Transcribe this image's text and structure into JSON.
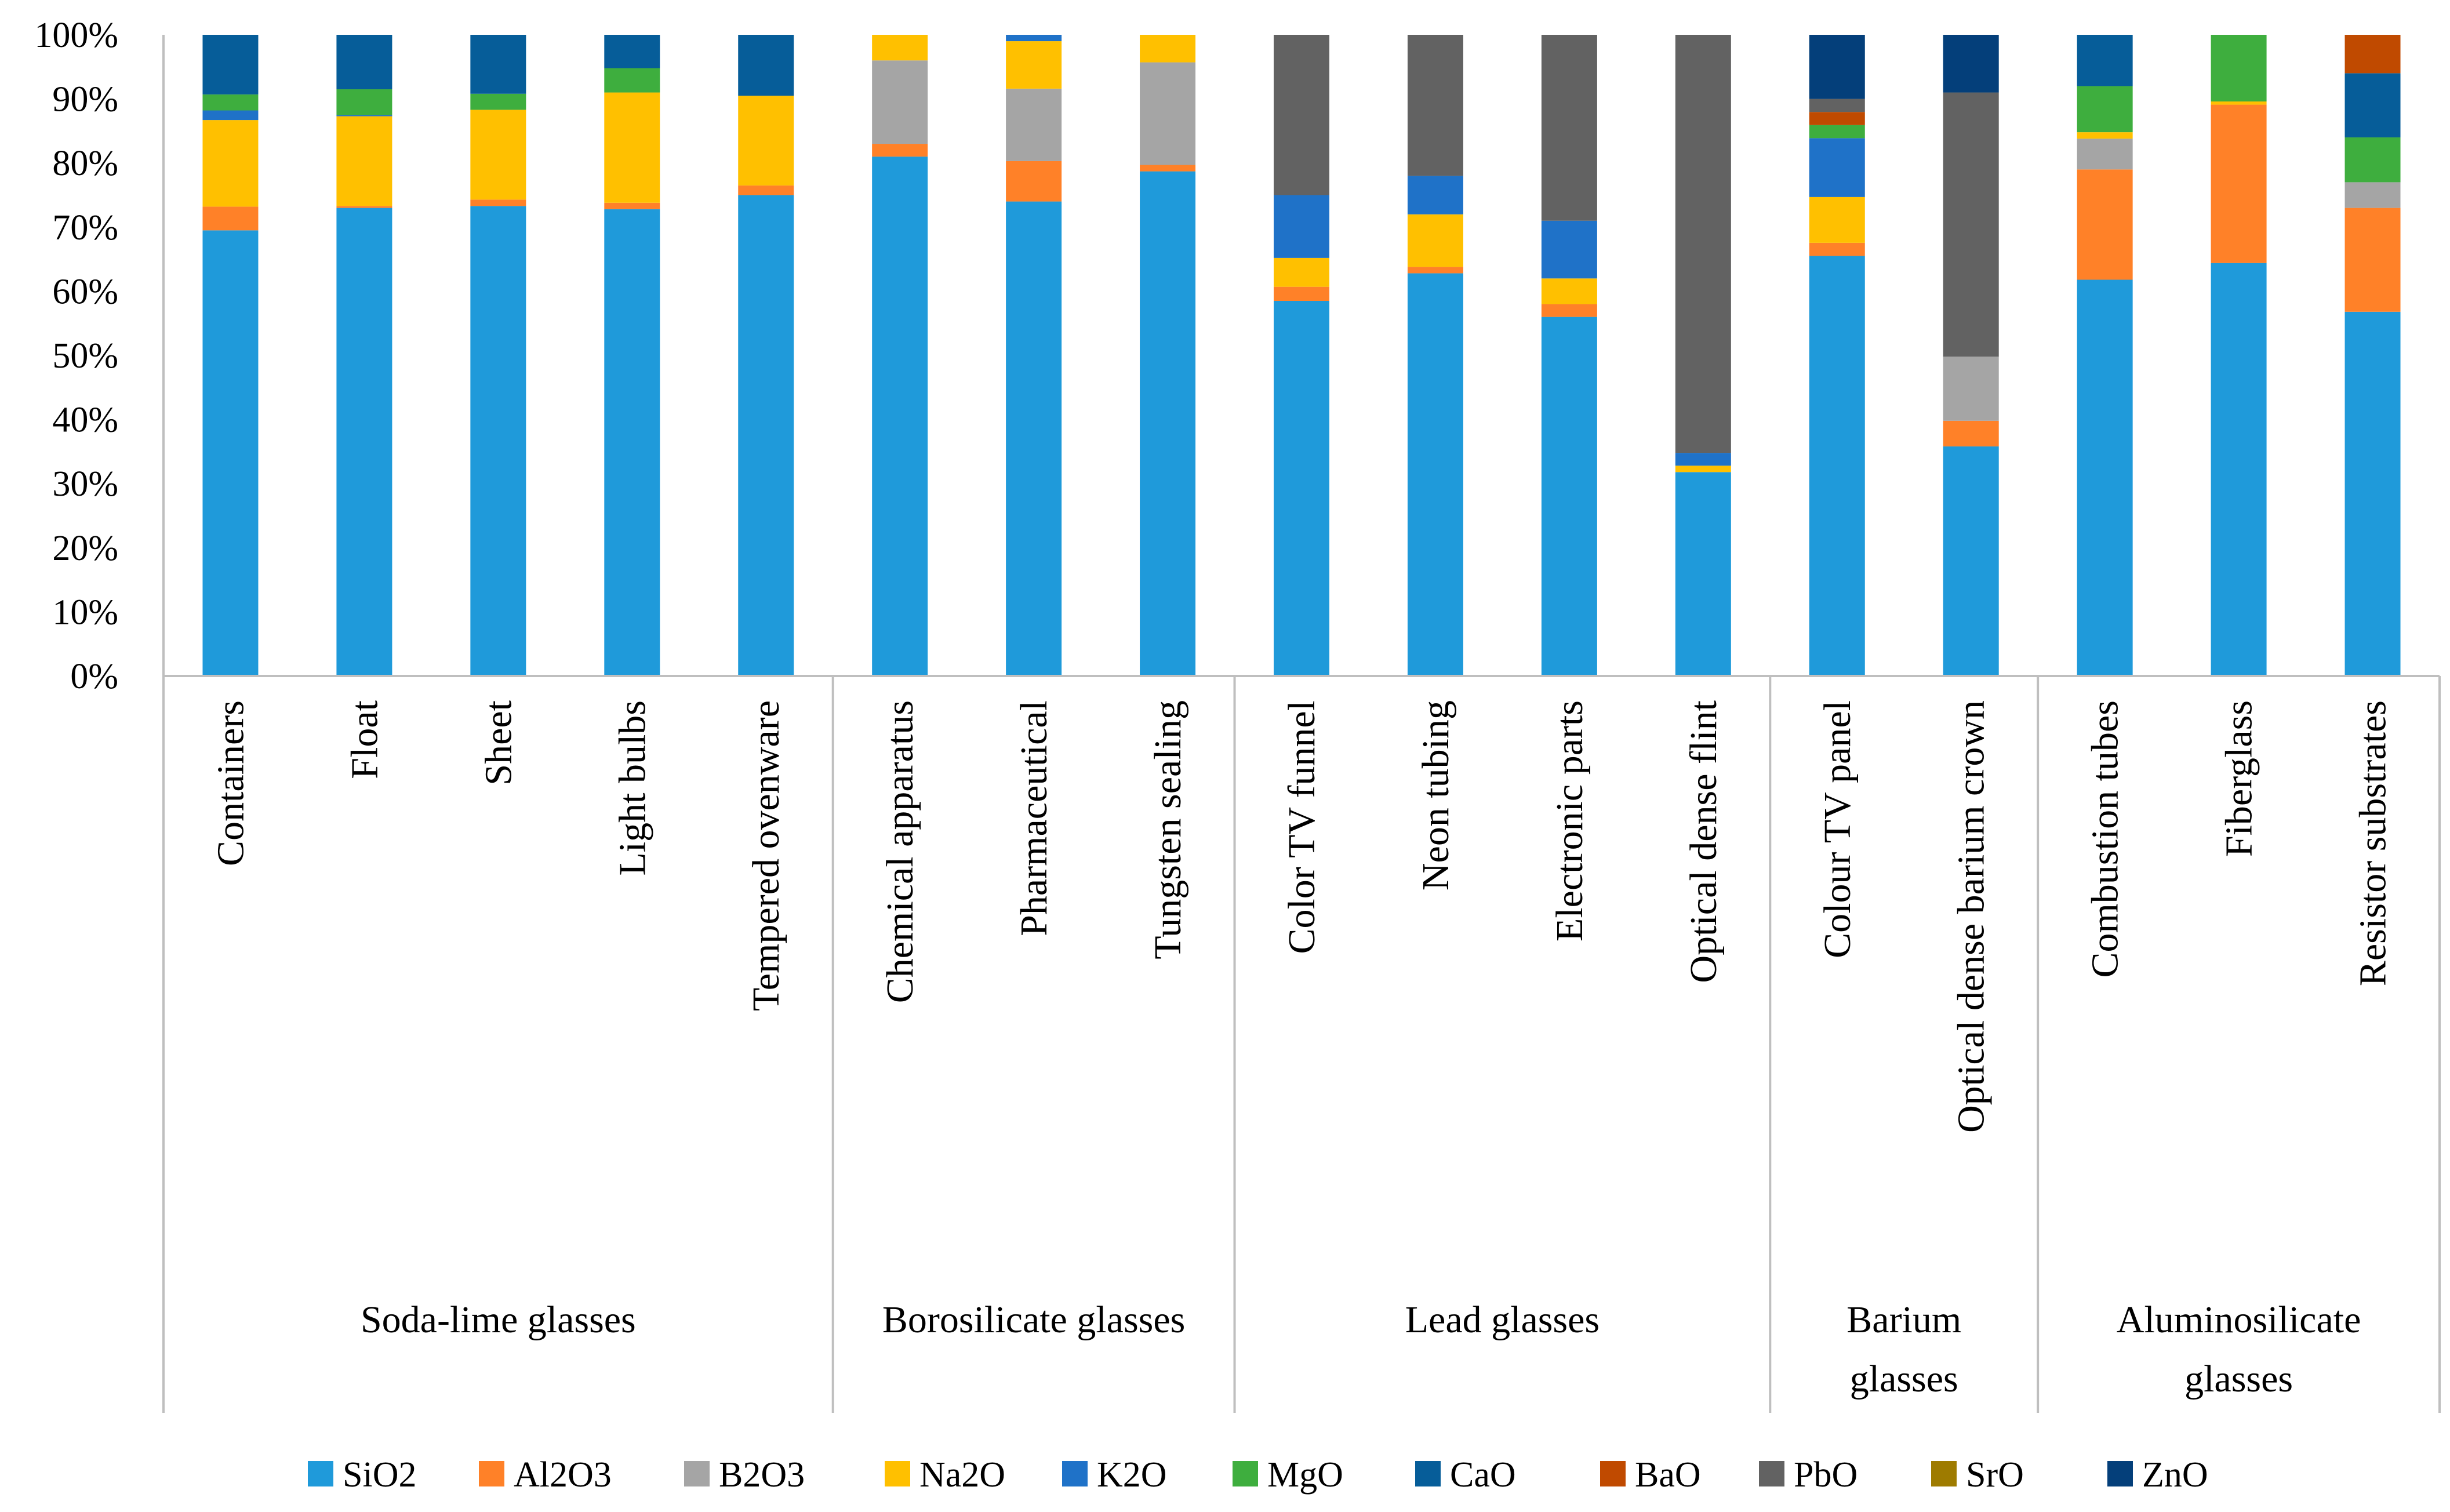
{
  "chart_data": {
    "type": "bar",
    "stacked": "percent",
    "title": "",
    "xlabel": "",
    "ylabel": "",
    "ylim": [
      0,
      100
    ],
    "yticks": [
      "0%",
      "10%",
      "20%",
      "30%",
      "40%",
      "50%",
      "60%",
      "70%",
      "80%",
      "90%",
      "100%"
    ],
    "categories": [
      "Containers",
      "Float",
      "Sheet",
      "Light bulbs",
      "Tempered ovenware",
      "Chemical apparatus",
      "Pharmaceutical",
      "Tungsten sealing",
      "Color TV funnel",
      "Neon tubing",
      "Electronic parts",
      "Optical dense flint",
      "Colour TV panel",
      "Optical dense barium crown",
      "Combustion tubes",
      "Fiberglass",
      "Resistor substrates"
    ],
    "groups": [
      {
        "lines": [
          "Soda-lime glasses"
        ],
        "start": 0,
        "end": 4
      },
      {
        "lines": [
          "Borosilicate glasses"
        ],
        "start": 5,
        "end": 7
      },
      {
        "lines": [
          "Lead glasses"
        ],
        "start": 8,
        "end": 11
      },
      {
        "lines": [
          "Barium",
          "glasses"
        ],
        "start": 12,
        "end": 13
      },
      {
        "lines": [
          "Aluminosilicate",
          "glasses"
        ],
        "start": 14,
        "end": 16
      }
    ],
    "series": [
      {
        "name": "SiO2",
        "color": "#1F9ADA",
        "values": [
          69.5,
          73,
          73.3,
          72.8,
          75,
          81,
          74,
          78.7,
          58.5,
          62.8,
          56,
          31.8,
          64.2,
          35.8,
          61.8,
          64.4,
          56.8
        ]
      },
      {
        "name": "Al2O3",
        "color": "#FF8128",
        "values": [
          3.7,
          0.3,
          1,
          1,
          1.5,
          2,
          6.3,
          1,
          2.2,
          1,
          2,
          0,
          2,
          4,
          17.2,
          24.7,
          16.2
        ]
      },
      {
        "name": "B2O3",
        "color": "#A5A5A5",
        "values": [
          0,
          0,
          0,
          0,
          0,
          13,
          11.3,
          16,
          0,
          0,
          0,
          0,
          0,
          10,
          4.8,
          0,
          4
        ]
      },
      {
        "name": "Na2O",
        "color": "#FFC000",
        "values": [
          13.5,
          14,
          14,
          17.2,
          14,
          4,
          7.4,
          4.3,
          4.5,
          8.2,
          4,
          1,
          7,
          0,
          1,
          0.5,
          0
        ]
      },
      {
        "name": "K2O",
        "color": "#1F72C8",
        "values": [
          1.5,
          0.2,
          0,
          0,
          0,
          0,
          1,
          0,
          9.8,
          6,
          9,
          2,
          9,
          0,
          0,
          0,
          0
        ]
      },
      {
        "name": "MgO",
        "color": "#3EAE3E",
        "values": [
          2.5,
          4,
          2.5,
          3.8,
          0,
          0,
          0,
          0,
          0,
          0,
          0,
          0,
          2,
          0,
          7.2,
          10.4,
          7
        ]
      },
      {
        "name": "CaO",
        "color": "#065D99",
        "values": [
          9.3,
          8.5,
          9.2,
          5.2,
          9.5,
          0,
          0,
          0,
          0,
          0,
          0,
          0,
          0,
          0,
          8,
          0,
          10
        ]
      },
      {
        "name": "BaO",
        "color": "#C04A00",
        "values": [
          0,
          0,
          0,
          0,
          0,
          0,
          0,
          0,
          0,
          0,
          0,
          0,
          2,
          0,
          0,
          0,
          6
        ]
      },
      {
        "name": "PbO",
        "color": "#626262",
        "values": [
          0,
          0,
          0,
          0,
          0,
          0,
          0,
          0,
          25,
          22,
          29,
          65.2,
          2,
          41.2,
          0,
          0,
          0
        ]
      },
      {
        "name": "SrO",
        "color": "#9E7B00",
        "values": [
          0,
          0,
          0,
          0,
          0,
          0,
          0,
          0,
          0,
          0,
          0,
          0,
          0,
          0,
          0,
          0,
          0
        ]
      },
      {
        "name": "ZnO",
        "color": "#043F7A",
        "values": [
          0,
          0,
          0,
          0,
          0,
          0,
          0,
          0,
          0,
          0,
          0,
          0,
          9.8,
          9,
          0,
          0,
          0
        ]
      }
    ],
    "legend": {
      "placement": "bottom"
    }
  },
  "colors": {
    "axis": "#BFBFBF",
    "text": "#000000"
  }
}
